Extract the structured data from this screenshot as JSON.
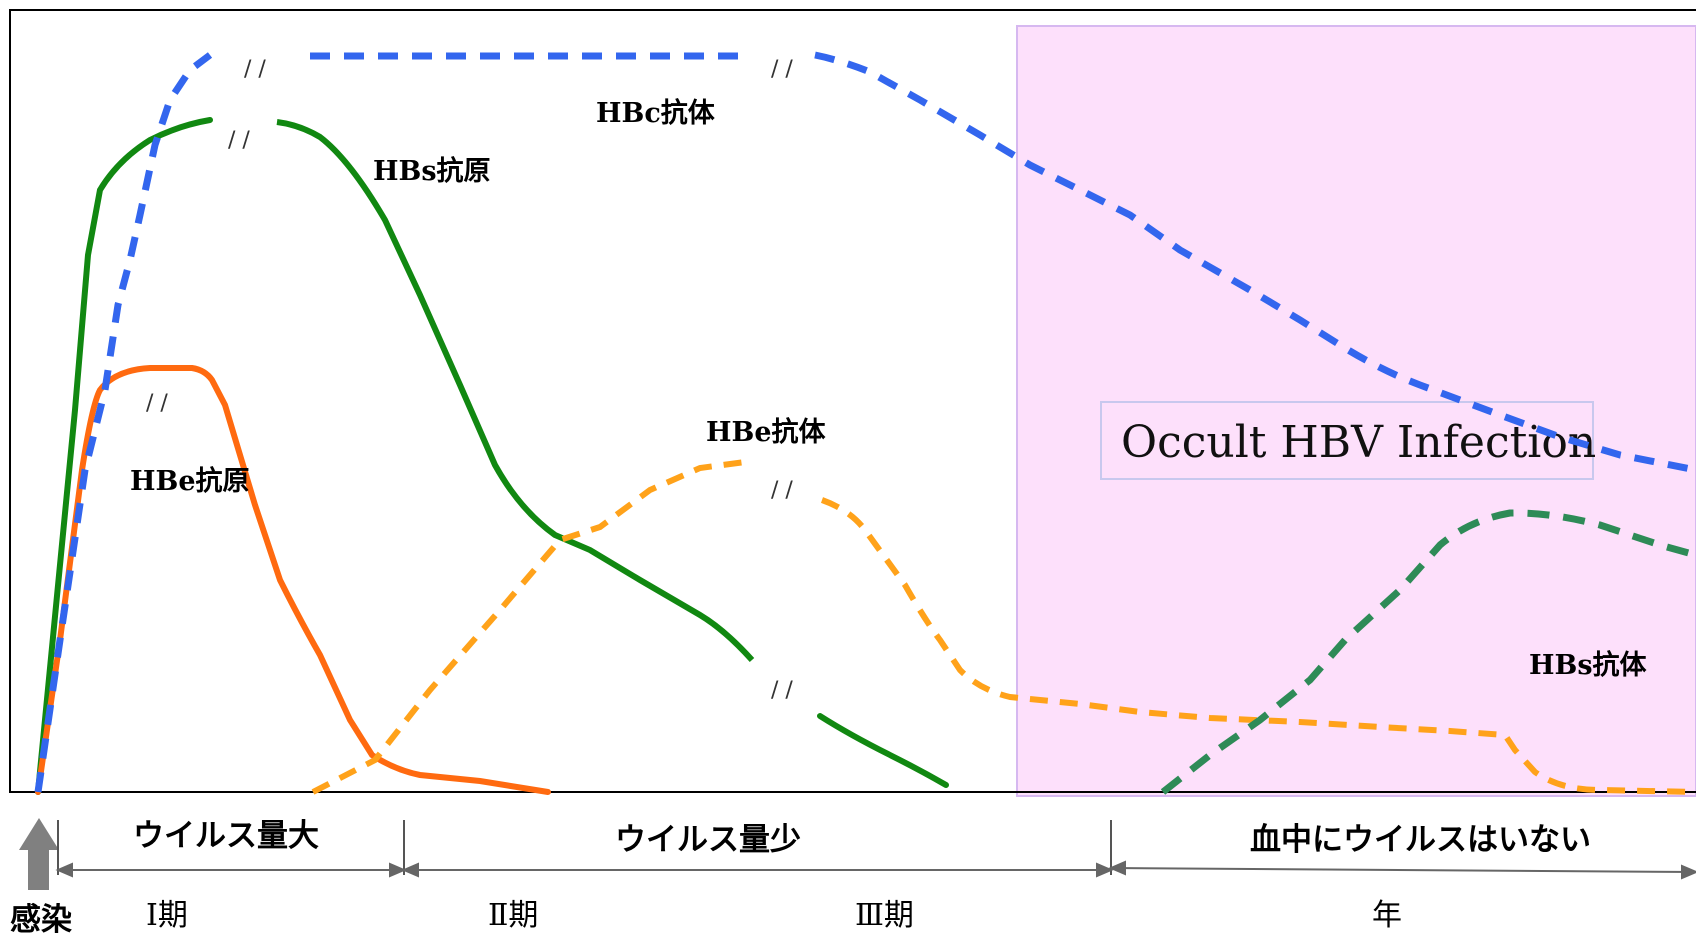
{
  "labels": {
    "hbc_antibody": "HBc抗体",
    "hbs_antigen": "HBs抗原",
    "hbe_antigen": "HBe抗原",
    "hbe_antibody": "HBe抗体",
    "hbs_antibody": "HBs抗体",
    "occult": "Occult HBV Infection",
    "break_mark": "/ /"
  },
  "phases": {
    "high_viral_load": "ウイルス量大",
    "low_viral_load": "ウイルス量少",
    "no_virus_in_blood": "血中にウイルスはいない"
  },
  "periods": {
    "infection": "感染",
    "period_1": "Ⅰ期",
    "period_2": "Ⅱ期",
    "period_3": "Ⅲ期",
    "years": "年"
  },
  "colors": {
    "hbc_antibody": "#3366ee",
    "hbs_antigen": "#118811",
    "hbe_antigen": "#ff6a10",
    "hbe_antibody": "#ffa21a",
    "hbs_antibody": "#2e8b57",
    "occult_region": "#fde0fb",
    "arrow": "#808080"
  }
}
